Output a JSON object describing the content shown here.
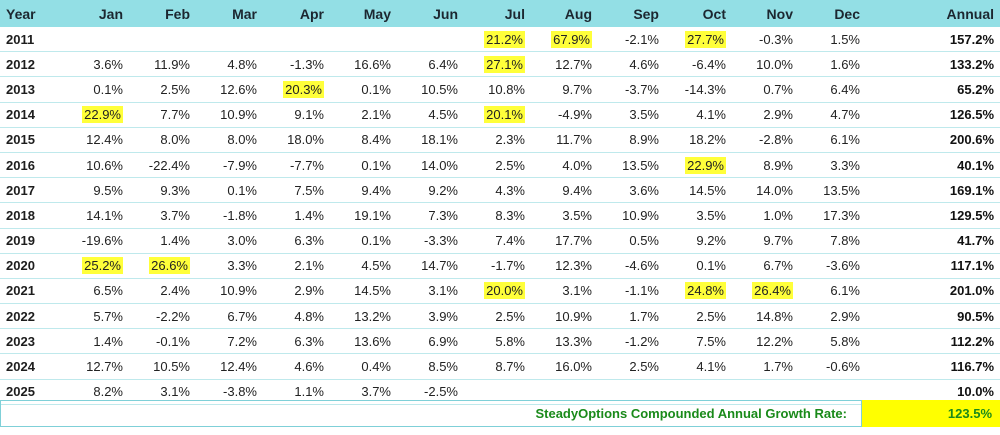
{
  "table": {
    "headers": [
      "Year",
      "Jan",
      "Feb",
      "Mar",
      "Apr",
      "May",
      "Jun",
      "Jul",
      "Aug",
      "Sep",
      "Oct",
      "Nov",
      "Dec",
      "Annual"
    ],
    "rows": [
      {
        "year": "2011",
        "cells": [
          "",
          "",
          "",
          "",
          "",
          "",
          "21.2%",
          "67.9%",
          "-2.1%",
          "27.7%",
          "-0.3%",
          "1.5%"
        ],
        "annual": "157.2%",
        "hl": [
          6,
          7,
          9
        ]
      },
      {
        "year": "2012",
        "cells": [
          "3.6%",
          "11.9%",
          "4.8%",
          "-1.3%",
          "16.6%",
          "6.4%",
          "27.1%",
          "12.7%",
          "4.6%",
          "-6.4%",
          "10.0%",
          "1.6%"
        ],
        "annual": "133.2%",
        "hl": [
          6
        ]
      },
      {
        "year": "2013",
        "cells": [
          "0.1%",
          "2.5%",
          "12.6%",
          "20.3%",
          "0.1%",
          "10.5%",
          "10.8%",
          "9.7%",
          "-3.7%",
          "-14.3%",
          "0.7%",
          "6.4%"
        ],
        "annual": "65.2%",
        "hl": [
          3
        ]
      },
      {
        "year": "2014",
        "cells": [
          "22.9%",
          "7.7%",
          "10.9%",
          "9.1%",
          "2.1%",
          "4.5%",
          "20.1%",
          "-4.9%",
          "3.5%",
          "4.1%",
          "2.9%",
          "4.7%"
        ],
        "annual": "126.5%",
        "hl": [
          0,
          6
        ]
      },
      {
        "year": "2015",
        "cells": [
          "12.4%",
          "8.0%",
          "8.0%",
          "18.0%",
          "8.4%",
          "18.1%",
          "2.3%",
          "11.7%",
          "8.9%",
          "18.2%",
          "-2.8%",
          "6.1%"
        ],
        "annual": "200.6%",
        "hl": []
      },
      {
        "year": "2016",
        "cells": [
          "10.6%",
          "-22.4%",
          "-7.9%",
          "-7.7%",
          "0.1%",
          "14.0%",
          "2.5%",
          "4.0%",
          "13.5%",
          "22.9%",
          "8.9%",
          "3.3%"
        ],
        "annual": "40.1%",
        "hl": [
          9
        ]
      },
      {
        "year": "2017",
        "cells": [
          "9.5%",
          "9.3%",
          "0.1%",
          "7.5%",
          "9.4%",
          "9.2%",
          "4.3%",
          "9.4%",
          "3.6%",
          "14.5%",
          "14.0%",
          "13.5%"
        ],
        "annual": "169.1%",
        "hl": []
      },
      {
        "year": "2018",
        "cells": [
          "14.1%",
          "3.7%",
          "-1.8%",
          "1.4%",
          "19.1%",
          "7.3%",
          "8.3%",
          "3.5%",
          "10.9%",
          "3.5%",
          "1.0%",
          "17.3%"
        ],
        "annual": "129.5%",
        "hl": []
      },
      {
        "year": "2019",
        "cells": [
          "-19.6%",
          "1.4%",
          "3.0%",
          "6.3%",
          "0.1%",
          "-3.3%",
          "7.4%",
          "17.7%",
          "0.5%",
          "9.2%",
          "9.7%",
          "7.8%"
        ],
        "annual": "41.7%",
        "hl": []
      },
      {
        "year": "2020",
        "cells": [
          "25.2%",
          "26.6%",
          "3.3%",
          "2.1%",
          "4.5%",
          "14.7%",
          "-1.7%",
          "12.3%",
          "-4.6%",
          "0.1%",
          "6.7%",
          "-3.6%"
        ],
        "annual": "117.1%",
        "hl": [
          0,
          1
        ]
      },
      {
        "year": "2021",
        "cells": [
          "6.5%",
          "2.4%",
          "10.9%",
          "2.9%",
          "14.5%",
          "3.1%",
          "20.0%",
          "3.1%",
          "-1.1%",
          "24.8%",
          "26.4%",
          "6.1%"
        ],
        "annual": "201.0%",
        "hl": [
          6,
          9,
          10
        ]
      },
      {
        "year": "2022",
        "cells": [
          "5.7%",
          "-2.2%",
          "6.7%",
          "4.8%",
          "13.2%",
          "3.9%",
          "2.5%",
          "10.9%",
          "1.7%",
          "2.5%",
          "14.8%",
          "2.9%"
        ],
        "annual": "90.5%",
        "hl": []
      },
      {
        "year": "2023",
        "cells": [
          "1.4%",
          "-0.1%",
          "7.2%",
          "6.3%",
          "13.6%",
          "6.9%",
          "5.8%",
          "13.3%",
          "-1.2%",
          "7.5%",
          "12.2%",
          "5.8%"
        ],
        "annual": "112.2%",
        "hl": []
      },
      {
        "year": "2024",
        "cells": [
          "12.7%",
          "10.5%",
          "12.4%",
          "4.6%",
          "0.4%",
          "8.5%",
          "8.7%",
          "16.0%",
          "2.5%",
          "4.1%",
          "1.7%",
          "-0.6%"
        ],
        "annual": "116.7%",
        "hl": []
      },
      {
        "year": "2025",
        "cells": [
          "8.2%",
          "3.1%",
          "-3.8%",
          "1.1%",
          "3.7%",
          "-2.5%",
          "",
          "",
          "",
          "",
          "",
          ""
        ],
        "annual": "10.0%",
        "hl": []
      }
    ]
  },
  "footer": {
    "label": "SteadyOptions Compounded Annual Growth Rate:",
    "value": "123.5%"
  },
  "colors": {
    "header_bg": "#93dfe5",
    "highlight": "#ffff3a",
    "footer_text": "#1a8a1a"
  }
}
